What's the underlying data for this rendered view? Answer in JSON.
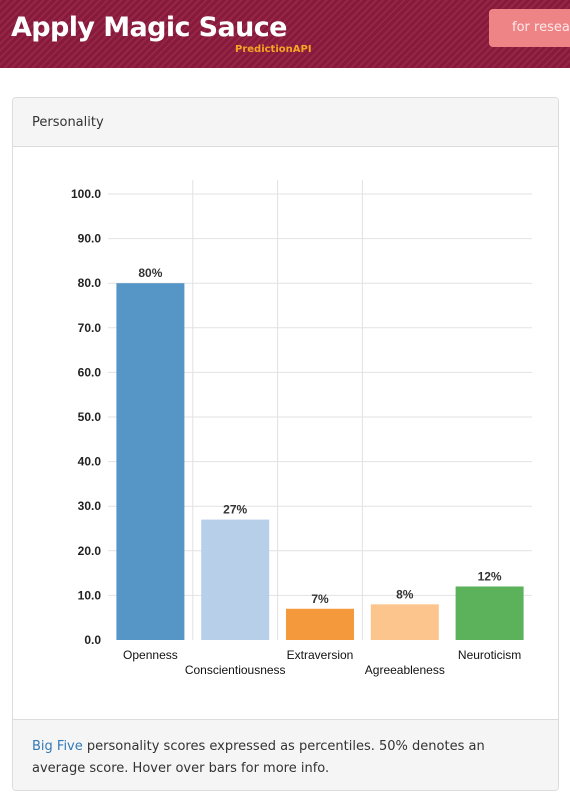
{
  "header": {
    "title": "Apply Magic Sauce",
    "subtitle": "PredictionAPI",
    "cta_label": "for resea"
  },
  "panel": {
    "title": "Personality"
  },
  "footer": {
    "link_text": "Big Five",
    "text": " personality scores expressed as percentiles. 50% denotes an average score. Hover over bars for more info."
  },
  "colors": {
    "header_bg": "#8e1a3e",
    "subtitle": "#f5a623",
    "cta_bg": "#ef8486",
    "link": "#337ab7"
  },
  "chart_data": {
    "type": "bar",
    "categories": [
      "Openness",
      "Conscientiousness",
      "Extraversion",
      "Agreeableness",
      "Neuroticism"
    ],
    "values": [
      80,
      27,
      7,
      8,
      12
    ],
    "data_labels": [
      "80%",
      "27%",
      "7%",
      "8%",
      "12%"
    ],
    "colors": [
      "#5596c6",
      "#b8cfe9",
      "#f59a3c",
      "#fcc58d",
      "#5cb25b"
    ],
    "ylim": [
      0,
      100
    ],
    "yticks": [
      "0.0",
      "10.0",
      "20.0",
      "30.0",
      "40.0",
      "50.0",
      "60.0",
      "70.0",
      "80.0",
      "90.0",
      "100.0"
    ],
    "grid": true
  }
}
